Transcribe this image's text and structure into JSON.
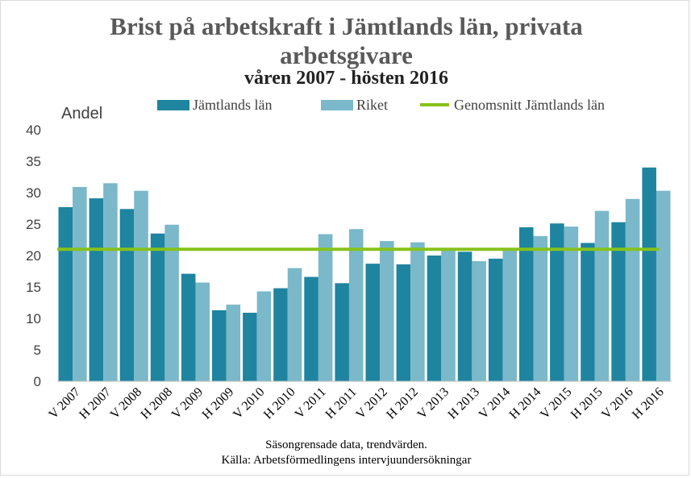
{
  "chart_data": {
    "type": "bar",
    "title_line1": "Brist på arbetskraft i Jämtlands län, privata",
    "title_line2": "arbetsgivare",
    "subtitle": "våren 2007 - hösten 2016",
    "ylabel": "Andel",
    "xlabel": "",
    "ylim": [
      0,
      40
    ],
    "yticks": [
      0,
      5,
      10,
      15,
      20,
      25,
      30,
      35,
      40
    ],
    "grid": false,
    "legend_position": "top",
    "categories": [
      "V 2007",
      "H 2007",
      "V 2008",
      "H 2008",
      "V 2009",
      "H 2009",
      "V 2010",
      "H 2010",
      "V 2011",
      "H 2011",
      "V 2012",
      "H 2012",
      "V 2013",
      "H 2013",
      "V 2014",
      "H 2014",
      "V 2015",
      "H 2015",
      "V 2016",
      "H 2016"
    ],
    "series": [
      {
        "name": "Jämtlands län",
        "color": "#1f849f",
        "values": [
          27.7,
          29.1,
          27.4,
          23.5,
          17.1,
          11.3,
          10.9,
          14.8,
          16.6,
          15.6,
          18.7,
          18.6,
          20.0,
          20.6,
          19.5,
          24.5,
          25.1,
          22.0,
          25.3,
          34.0
        ]
      },
      {
        "name": "Riket",
        "color": "#7ab8ca",
        "values": [
          30.9,
          31.5,
          30.3,
          24.9,
          15.7,
          12.2,
          14.3,
          18.0,
          23.4,
          24.2,
          22.3,
          22.1,
          21.0,
          19.1,
          21.0,
          23.1,
          24.6,
          27.1,
          29.0,
          30.3
        ]
      }
    ],
    "average_line": {
      "name": "Genomsnitt Jämtlands län",
      "color": "#86c21a",
      "value": 21
    },
    "footer_line1": "Säsongrensade data, trendvärden.",
    "footer_line2": "Källa: Arbetsförmedlingens intervjuundersökningar"
  }
}
